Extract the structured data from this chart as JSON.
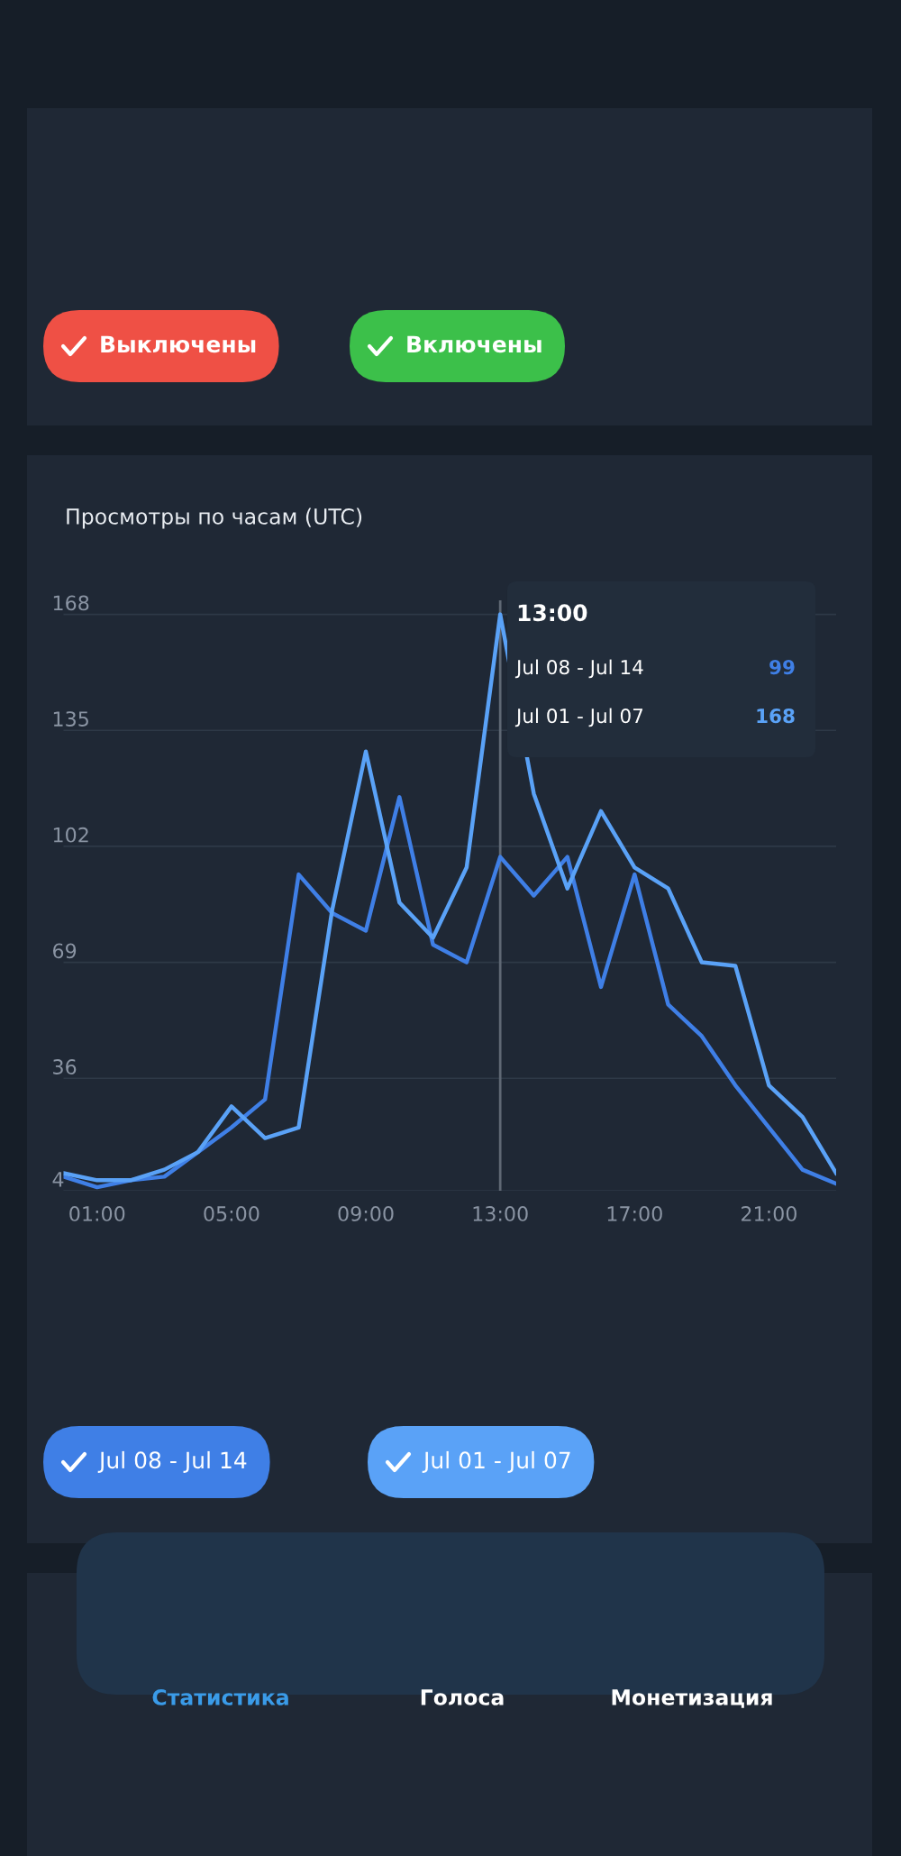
{
  "chart_data": [
    {
      "type": "other",
      "annotations": [
        "Выключены",
        "Включены"
      ],
      "colors": [
        "#ef5045",
        "#3cc04a"
      ]
    },
    {
      "type": "line",
      "title": "Просмотры по часам (UTC)",
      "x": [
        0,
        1,
        2,
        3,
        4,
        5,
        6,
        7,
        8,
        9,
        10,
        11,
        12,
        13,
        14,
        15,
        16,
        17,
        18,
        19,
        20,
        21,
        22,
        23
      ],
      "series": [
        {
          "name": "Jul 08 - Jul 14",
          "color": "#3f7fe6",
          "values": [
            8,
            5,
            7,
            8,
            15,
            22,
            30,
            94,
            83,
            78,
            116,
            74,
            69,
            99,
            88,
            99,
            62,
            94,
            57,
            48,
            34,
            22,
            10,
            6
          ]
        },
        {
          "name": "Jul 01 - Jul 07",
          "color": "#5aa2f7",
          "values": [
            9,
            7,
            7,
            10,
            15,
            28,
            19,
            22,
            84,
            129,
            86,
            76,
            96,
            168,
            117,
            90,
            112,
            96,
            90,
            69,
            68,
            34,
            25,
            9
          ]
        }
      ],
      "xlim": [
        0,
        23
      ],
      "xticks": [
        {
          "value": 1,
          "label": "01:00"
        },
        {
          "value": 5,
          "label": "05:00"
        },
        {
          "value": 9,
          "label": "09:00"
        },
        {
          "value": 13,
          "label": "13:00"
        },
        {
          "value": 17,
          "label": "17:00"
        },
        {
          "value": 21,
          "label": "21:00"
        }
      ],
      "ylim": [
        4,
        172
      ],
      "yticks": [
        4,
        36,
        69,
        102,
        135,
        168
      ],
      "grid": "y",
      "legend": "bottom",
      "marker": "none",
      "line_style": "solid",
      "ref_lines": [
        {
          "axis": "x",
          "value": 13,
          "label": null,
          "color": "#5f6874"
        }
      ],
      "annotations": [
        "13:00",
        "Jul 08 - Jul 14",
        "99",
        "Jul 01 - Jul 07",
        "168"
      ]
    },
    {
      "type": "other",
      "annotations": [
        "Статистика",
        "Голоса",
        "Монетизация"
      ],
      "colors": [
        "#3a9be8",
        null,
        null
      ]
    }
  ]
}
